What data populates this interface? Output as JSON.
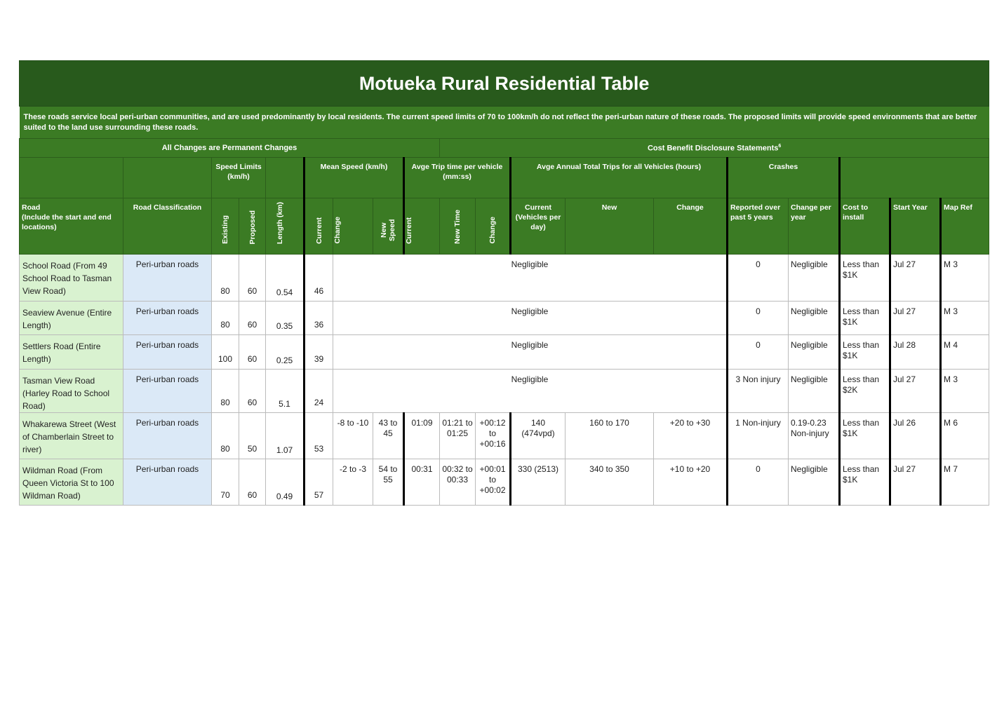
{
  "title": "Motueka Rural Residential Table",
  "description": "These roads service local peri-urban communities, and are used predominantly by local residents.  The current speed limits of 70 to 100km/h do not reflect the peri-urban nature of these roads.  The proposed limits will provide speed environments that are better suited to the land use surrounding these roads.",
  "groups": {
    "left": "All Changes are Permanent Changes",
    "right": "Cost Benefit Disclosure Statements",
    "right_sup": "6"
  },
  "header_groups": {
    "speed_limits": "Speed Limits (km/h)",
    "mean_speed": "Mean Speed (km/h)",
    "trip_time": "Avge Trip time per vehicle (mm:ss)",
    "annual_trips": "Avge Annual Total Trips for all Vehicles (hours)",
    "crashes": "Crashes"
  },
  "columns": {
    "road": "Road",
    "road_sub": "(Include the start and end locations)",
    "classification": "Road Classification",
    "existing": "Existing",
    "proposed": "Proposed",
    "length": "Length (km)",
    "ms_current": "Current",
    "ms_change": "Change",
    "ms_new": "New Speed",
    "tt_current": "Current",
    "tt_new": "New Time",
    "tt_change": "Change",
    "at_current": "Current (Vehicles per day)",
    "at_new": "New",
    "at_change": "Change",
    "cr_reported": "Reported over past 5 years",
    "cr_change": "Change per year",
    "cost": "Cost to install",
    "start": "Start Year",
    "map": "Map Ref"
  },
  "rows": [
    {
      "road": "School Road (From 49 School Road to Tasman View Road)",
      "classification": "Peri-urban roads",
      "existing": "80",
      "proposed": "60",
      "length": "0.54",
      "ms_current": "46",
      "negligible": "Negligible",
      "cr_reported": "0",
      "cr_change": "Negligible",
      "cost": "Less than $1K",
      "start": "Jul 27",
      "map": "M 3"
    },
    {
      "road": "Seaview Avenue (Entire Length)",
      "classification": "Peri-urban roads",
      "existing": "80",
      "proposed": "60",
      "length": "0.35",
      "ms_current": "36",
      "negligible": "Negligible",
      "cr_reported": "0",
      "cr_change": "Negligible",
      "cost": "Less than $1K",
      "start": "Jul 27",
      "map": "M 3"
    },
    {
      "road": "Settlers Road (Entire Length)",
      "classification": "Peri-urban roads",
      "existing": "100",
      "proposed": "60",
      "length": "0.25",
      "ms_current": "39",
      "negligible": "Negligible",
      "cr_reported": "0",
      "cr_change": "Negligible",
      "cost": "Less than $1K",
      "start": "Jul 28",
      "map": "M 4"
    },
    {
      "road": "Tasman View Road (Harley Road to School Road)",
      "classification": "Peri-urban roads",
      "existing": "80",
      "proposed": "60",
      "length": "5.1",
      "ms_current": "24",
      "negligible": "Negligible",
      "cr_reported": "3 Non injury",
      "cr_change": "Negligible",
      "cost": "Less than $2K",
      "start": "Jul 27",
      "map": "M 3"
    },
    {
      "road": "Whakarewa Street (West of Chamberlain Street to river)",
      "classification": "Peri-urban roads",
      "existing": "80",
      "proposed": "50",
      "length": "1.07",
      "ms_current": "53",
      "ms_change": "-8 to -10",
      "ms_new": "43 to 45",
      "tt_current": "01:09",
      "tt_new": "01:21 to 01:25",
      "tt_change": "+00:12 to +00:16",
      "at_current": "140 (474vpd)",
      "at_new": "160 to 170",
      "at_change": "+20 to +30",
      "cr_reported": "1 Non-injury",
      "cr_change": "0.19-0.23 Non-injury",
      "cost": "Less than $1K",
      "start": "Jul 26",
      "map": "M 6"
    },
    {
      "road": "Wildman Road (From Queen Victoria St to 100 Wildman Road)",
      "classification": "Peri-urban roads",
      "existing": "70",
      "proposed": "60",
      "length": "0.49",
      "ms_current": "57",
      "ms_change": "-2 to -3",
      "ms_new": "54 to 55",
      "tt_current": "00:31",
      "tt_new": "00:32 to 00:33",
      "tt_change": "+00:01 to +00:02",
      "at_current": "330 (2513)",
      "at_new": "340 to 350",
      "at_change": "+10 to +20",
      "cr_reported": "0",
      "cr_change": "Negligible",
      "cost": "Less than $1K",
      "start": "Jul 27",
      "map": "M 7"
    }
  ],
  "colors": {
    "title_bg": "#285a1c",
    "header_bg": "#3b7b24",
    "road_bg": "#d9f2d0",
    "class_bg": "#dbe9f7"
  }
}
